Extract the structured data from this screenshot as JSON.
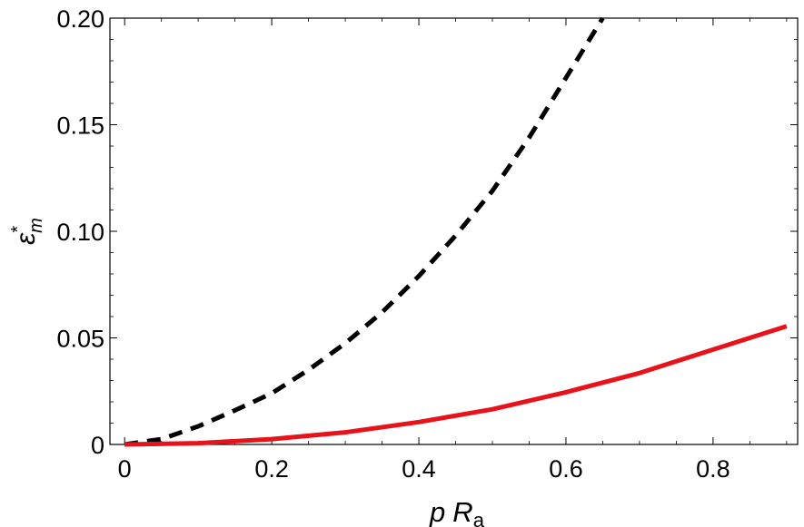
{
  "chart_data": {
    "type": "line",
    "title": "",
    "xlabel": {
      "italic": "p",
      "base": "R",
      "sub": "a"
    },
    "ylabel": {
      "base": "ε",
      "sup": "*",
      "sub": "m"
    },
    "xlim": [
      -0.02,
      0.915
    ],
    "ylim": [
      0,
      0.2
    ],
    "x_ticks": [
      {
        "value": 0,
        "label": "0"
      },
      {
        "value": 0.2,
        "label": "0.2"
      },
      {
        "value": 0.4,
        "label": "0.4"
      },
      {
        "value": 0.6,
        "label": "0.6"
      },
      {
        "value": 0.8,
        "label": "0.8"
      }
    ],
    "y_ticks": [
      {
        "value": 0,
        "label": "0"
      },
      {
        "value": 0.05,
        "label": "0.05"
      },
      {
        "value": 0.1,
        "label": "0.10"
      },
      {
        "value": 0.15,
        "label": "0.15"
      },
      {
        "value": 0.2,
        "label": "0.20"
      }
    ],
    "grid": false,
    "legend": "none",
    "series": [
      {
        "style": "dashed",
        "color": "#000000",
        "x": [
          0,
          0.05,
          0.1,
          0.15,
          0.2,
          0.25,
          0.3,
          0.35,
          0.4,
          0.45,
          0.5,
          0.55,
          0.6,
          0.65
        ],
        "y": [
          0,
          0.0025,
          0.0085,
          0.016,
          0.024,
          0.035,
          0.0475,
          0.062,
          0.079,
          0.098,
          0.119,
          0.144,
          0.172,
          0.2
        ]
      },
      {
        "style": "solid",
        "color": "#e8121a",
        "x": [
          0,
          0.1,
          0.2,
          0.3,
          0.4,
          0.5,
          0.6,
          0.7,
          0.8,
          0.9
        ],
        "y": [
          0,
          0.0006,
          0.0025,
          0.0057,
          0.0105,
          0.0165,
          0.0245,
          0.0335,
          0.0445,
          0.0555
        ]
      }
    ]
  }
}
